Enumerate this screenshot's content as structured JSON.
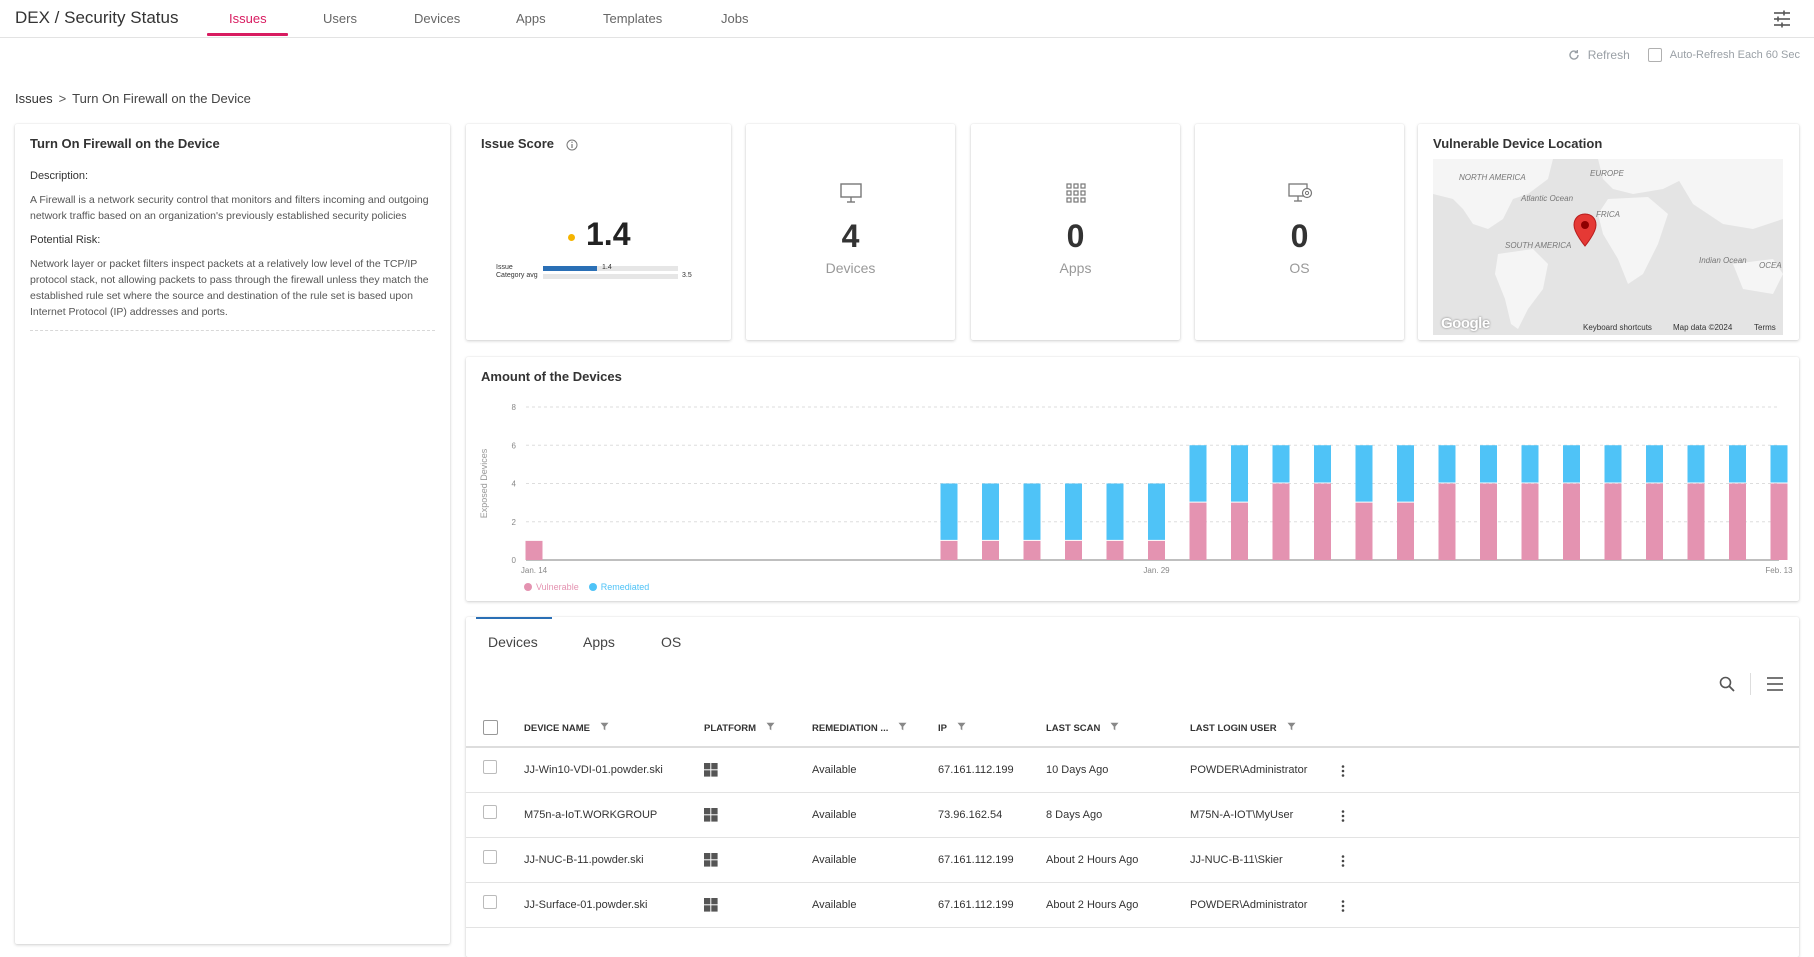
{
  "app": {
    "title": "DEX / Security Status"
  },
  "nav": {
    "tabs": [
      "Issues",
      "Users",
      "Devices",
      "Apps",
      "Templates",
      "Jobs"
    ],
    "active": "Issues"
  },
  "toolbar": {
    "refresh_label": "Refresh",
    "auto_refresh_label": "Auto-Refresh Each 60 Sec",
    "auto_refresh_checked": false
  },
  "breadcrumb": {
    "root": "Issues",
    "separator": ">",
    "current": "Turn On Firewall on the Device"
  },
  "issue": {
    "title": "Turn On Firewall on the Device",
    "description_heading": "Description:",
    "description": "A Firewall is a network security control that monitors and filters incoming and outgoing network traffic based on an organization's previously established security policies",
    "risk_heading": "Potential Risk:",
    "risk": "Network layer or packet filters inspect packets at a relatively low level of the TCP/IP protocol stack, not allowing packets to pass through the firewall unless they match the established rule set where the source and destination of the rule set is based upon Internet Protocol (IP) addresses and ports."
  },
  "issue_score": {
    "title": "Issue Score",
    "value": "1.4",
    "dot_color": "#f5b400",
    "bars": [
      {
        "label": "Issue",
        "value": 1.4,
        "value_text": "1.4"
      },
      {
        "label": "Category avg",
        "value": 3.5,
        "value_text": "3.5"
      }
    ],
    "scale_max": 3.5
  },
  "stats": [
    {
      "icon": "monitor-icon",
      "value": "4",
      "label": "Devices"
    },
    {
      "icon": "apps-grid-icon",
      "value": "0",
      "label": "Apps"
    },
    {
      "icon": "os-settings-icon",
      "value": "0",
      "label": "OS"
    }
  ],
  "map": {
    "title": "Vulnerable Device Location",
    "labels": {
      "north_america": "NORTH AMERICA",
      "europe": "EUROPE",
      "africa": "FRICA",
      "atlantic": "Atlantic Ocean",
      "south_america": "SOUTH AMERICA",
      "indian": "Indian Ocean",
      "ocea": "OCEA"
    },
    "logo": "Google",
    "footer": [
      "Keyboard shortcuts",
      "Map data ©2024",
      "Terms"
    ],
    "marker_color": "#e53935"
  },
  "chart_data": {
    "type": "bar",
    "title": "Amount of the Devices",
    "ylabel": "Exposed Devices",
    "ylim": [
      0,
      8
    ],
    "yticks": [
      0,
      2,
      4,
      6,
      8
    ],
    "x_tick_labels": [
      {
        "index": 0,
        "label": "Jan. 14"
      },
      {
        "index": 15,
        "label": "Jan. 29"
      },
      {
        "index": 30,
        "label": "Feb. 13"
      }
    ],
    "stacked": true,
    "colors": {
      "Vulnerable": "#e493b1",
      "Remediated": "#4fc3f7"
    },
    "series": [
      {
        "name": "Vulnerable",
        "values": [
          1,
          0,
          0,
          0,
          0,
          0,
          0,
          0,
          0,
          0,
          1,
          1,
          1,
          1,
          1,
          1,
          3,
          3,
          4,
          4,
          3,
          3,
          4,
          4,
          4,
          4,
          4,
          4,
          4,
          4,
          4
        ]
      },
      {
        "name": "Remediated",
        "values": [
          0,
          0,
          0,
          0,
          0,
          0,
          0,
          0,
          0,
          0,
          3,
          3,
          3,
          3,
          3,
          3,
          3,
          3,
          2,
          2,
          3,
          3,
          2,
          2,
          2,
          2,
          2,
          2,
          2,
          2,
          2
        ]
      }
    ],
    "grid": true,
    "legend_position": "bottom-left"
  },
  "table": {
    "tabs": [
      "Devices",
      "Apps",
      "OS"
    ],
    "active_tab": "Devices",
    "columns": [
      "DEVICE NAME",
      "PLATFORM",
      "REMEDIATION ...",
      "IP",
      "LAST SCAN",
      "LAST LOGIN USER"
    ],
    "rows": [
      {
        "device": "JJ-Win10-VDI-01.powder.ski",
        "platform": "windows-icon",
        "remediation": "Available",
        "ip": "67.161.112.199",
        "last_scan": "10 Days Ago",
        "user": "POWDER\\Administrator"
      },
      {
        "device": "M75n-a-IoT.WORKGROUP",
        "platform": "windows-icon",
        "remediation": "Available",
        "ip": "73.96.162.54",
        "last_scan": "8 Days Ago",
        "user": "M75N-A-IOT\\MyUser"
      },
      {
        "device": "JJ-NUC-B-11.powder.ski",
        "platform": "windows-icon",
        "remediation": "Available",
        "ip": "67.161.112.199",
        "last_scan": "About 2 Hours Ago",
        "user": "JJ-NUC-B-11\\Skier"
      },
      {
        "device": "JJ-Surface-01.powder.ski",
        "platform": "windows-icon",
        "remediation": "Available",
        "ip": "67.161.112.199",
        "last_scan": "About 2 Hours Ago",
        "user": "POWDER\\Administrator"
      }
    ]
  }
}
